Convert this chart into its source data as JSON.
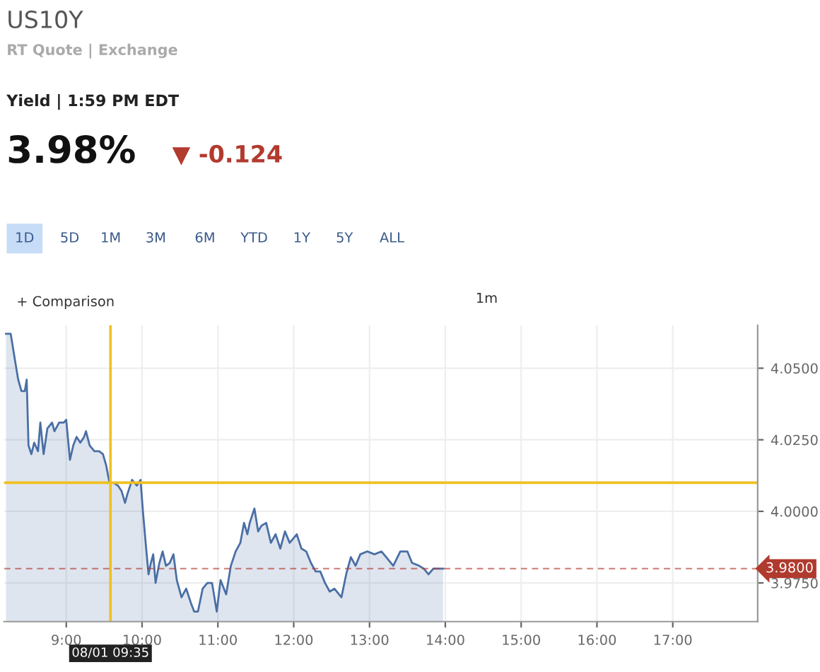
{
  "chart_data": {
    "type": "area",
    "title": "US10Y",
    "subtitle": "RT Quote | Exchange",
    "annotations": [
      "Yield | 1:59 PM EDT",
      "3.98%",
      "▼ -0.124",
      "1D",
      "5D",
      "1M",
      "3M",
      "6M",
      "YTD",
      "1Y",
      "5Y",
      "ALL",
      "+ Comparison",
      "1m",
      "08/01 09:35"
    ],
    "series": [
      {
        "color": "#4a6fa5",
        "x": [
          8.205,
          8.267,
          8.316,
          8.366,
          8.409,
          8.453,
          8.478,
          8.502,
          8.54,
          8.577,
          8.627,
          8.658,
          8.701,
          8.751,
          8.813,
          8.844,
          8.906,
          8.968,
          8.999,
          9.049,
          9.092,
          9.136,
          9.185,
          9.235,
          9.26,
          9.309,
          9.371,
          9.433,
          9.483,
          9.527,
          9.57,
          9.62,
          9.682,
          9.731,
          9.775,
          9.806,
          9.868,
          9.93,
          9.98,
          10.011,
          10.054,
          10.085,
          10.116,
          10.147,
          10.178,
          10.228,
          10.271,
          10.315,
          10.365,
          10.414,
          10.458,
          10.52,
          10.582,
          10.644,
          10.687,
          10.737,
          10.799,
          10.861,
          10.923,
          10.985,
          11.035,
          11.109,
          11.171,
          11.234,
          11.296,
          11.345,
          11.389,
          11.42,
          11.482,
          11.531,
          11.575,
          11.637,
          11.699,
          11.761,
          11.823,
          11.885,
          11.947,
          12.04,
          12.102,
          12.165,
          12.227,
          12.289,
          12.351,
          12.413,
          12.475,
          12.537,
          12.599,
          12.63,
          12.692,
          12.754,
          12.816,
          12.878,
          12.971,
          13.065,
          13.158,
          13.22,
          13.313,
          13.406,
          13.499,
          13.561,
          13.654,
          13.716,
          13.778,
          13.842,
          13.97
        ],
        "values": [
          4.062,
          4.062,
          4.054,
          4.046,
          4.042,
          4.042,
          4.046,
          4.023,
          4.02,
          4.024,
          4.021,
          4.031,
          4.02,
          4.029,
          4.031,
          4.028,
          4.031,
          4.031,
          4.032,
          4.018,
          4.023,
          4.026,
          4.024,
          4.026,
          4.028,
          4.023,
          4.021,
          4.021,
          4.02,
          4.016,
          4.01,
          4.01,
          4.009,
          4.007,
          4.003,
          4.006,
          4.011,
          4.009,
          4.011,
          4.0,
          3.987,
          3.978,
          3.982,
          3.985,
          3.975,
          3.982,
          3.986,
          3.981,
          3.982,
          3.985,
          3.976,
          3.97,
          3.973,
          3.968,
          3.965,
          3.965,
          3.973,
          3.975,
          3.975,
          3.965,
          3.976,
          3.971,
          3.981,
          3.986,
          3.989,
          3.996,
          3.992,
          3.996,
          4.001,
          3.993,
          3.995,
          3.996,
          3.989,
          3.992,
          3.987,
          3.993,
          3.989,
          3.992,
          3.987,
          3.986,
          3.982,
          3.979,
          3.979,
          3.975,
          3.972,
          3.973,
          3.971,
          3.97,
          3.978,
          3.984,
          3.981,
          3.985,
          3.986,
          3.985,
          3.986,
          3.984,
          3.981,
          3.986,
          3.986,
          3.982,
          3.981,
          3.98,
          3.978,
          3.98,
          3.98
        ]
      }
    ],
    "xlim": [
      8.18,
      18.12
    ],
    "ylim": [
      3.9615,
      4.065
    ],
    "xticks": [
      {
        "value": 9,
        "label": "9:00"
      },
      {
        "value": 10,
        "label": "10:00"
      },
      {
        "value": 11,
        "label": "11:00"
      },
      {
        "value": 12,
        "label": "12:00"
      },
      {
        "value": 13,
        "label": "13:00"
      },
      {
        "value": 14,
        "label": "14:00"
      },
      {
        "value": 15,
        "label": "15:00"
      },
      {
        "value": 16,
        "label": "16:00"
      },
      {
        "value": 17,
        "label": "17:00"
      }
    ],
    "yticks": [
      {
        "value": 3.975,
        "label": "3.9750"
      },
      {
        "value": 4.0,
        "label": "4.0000"
      },
      {
        "value": 4.025,
        "label": "4.0250"
      },
      {
        "value": 4.05,
        "label": "4.0500"
      }
    ],
    "ref_lines": [
      {
        "axis": "x",
        "value": 9.583,
        "color": "#f0c020"
      },
      {
        "axis": "y",
        "value": 4.01,
        "color": "#f0c020"
      },
      {
        "axis": "y",
        "value": 3.98,
        "label": "3.9800",
        "color": "#b03a2e",
        "line_style": "dashed"
      }
    ],
    "grid": true
  }
}
